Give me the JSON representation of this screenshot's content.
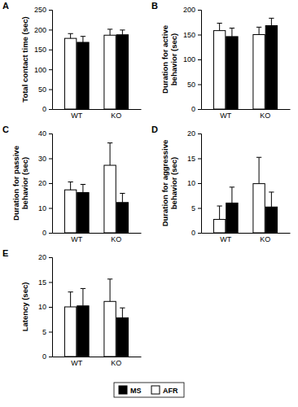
{
  "chart_data": [
    {
      "type": "bar",
      "title": "A",
      "ylabel": "Total contact time (sec)",
      "categories": [
        "WT",
        "KO"
      ],
      "series": [
        {
          "name": "AFR",
          "color": "#ffffff",
          "values": [
            178,
            186
          ],
          "errors": [
            12,
            15
          ]
        },
        {
          "name": "MS",
          "color": "#000000",
          "values": [
            168,
            187
          ],
          "errors": [
            15,
            12
          ]
        }
      ],
      "ylim": [
        0,
        250
      ],
      "yticks": [
        0,
        50,
        100,
        150,
        200,
        250
      ],
      "legend": "bottom"
    },
    {
      "type": "bar",
      "title": "B",
      "ylabel": "Duration for active behavior (sec)",
      "categories": [
        "WT",
        "KO"
      ],
      "series": [
        {
          "name": "AFR",
          "color": "#ffffff",
          "values": [
            158,
            150
          ],
          "errors": [
            15,
            15
          ]
        },
        {
          "name": "MS",
          "color": "#000000",
          "values": [
            146,
            168
          ],
          "errors": [
            17,
            15
          ]
        }
      ],
      "ylim": [
        0,
        200
      ],
      "yticks": [
        0,
        50,
        100,
        150,
        200
      ]
    },
    {
      "type": "bar",
      "title": "C",
      "ylabel": "Duration for passive behavior (sec)",
      "categories": [
        "WT",
        "KO"
      ],
      "series": [
        {
          "name": "AFR",
          "color": "#ffffff",
          "values": [
            17.3,
            27.2
          ],
          "errors": [
            3.2,
            9
          ]
        },
        {
          "name": "MS",
          "color": "#000000",
          "values": [
            16.2,
            12.2
          ],
          "errors": [
            3.3,
            3.7
          ]
        }
      ],
      "ylim": [
        0,
        40
      ],
      "yticks": [
        0,
        10,
        20,
        30,
        40
      ]
    },
    {
      "type": "bar",
      "title": "D",
      "ylabel": "Duration for aggressive behavior (sec)",
      "categories": [
        "WT",
        "KO"
      ],
      "series": [
        {
          "name": "AFR",
          "color": "#ffffff",
          "values": [
            2.7,
            9.9
          ],
          "errors": [
            2.7,
            5.3
          ]
        },
        {
          "name": "MS",
          "color": "#000000",
          "values": [
            6,
            5.2
          ],
          "errors": [
            3.2,
            3
          ]
        }
      ],
      "ylim": [
        0,
        20
      ],
      "yticks": [
        0,
        5,
        10,
        15,
        20
      ]
    },
    {
      "type": "bar",
      "title": "E",
      "ylabel": "Latency (sec)",
      "categories": [
        "WT",
        "KO"
      ],
      "series": [
        {
          "name": "AFR",
          "color": "#ffffff",
          "values": [
            10,
            11.1
          ],
          "errors": [
            3,
            4.5
          ]
        },
        {
          "name": "MS",
          "color": "#000000",
          "values": [
            10.2,
            7.8
          ],
          "errors": [
            3.5,
            2
          ]
        }
      ],
      "ylim": [
        0,
        20
      ],
      "yticks": [
        0,
        5,
        10,
        15,
        20
      ]
    }
  ]
}
